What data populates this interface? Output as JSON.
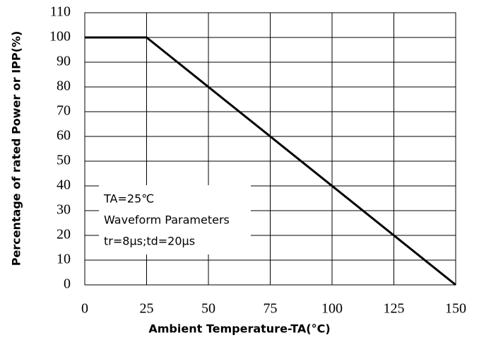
{
  "chart_data": {
    "type": "line",
    "x": [
      0,
      25,
      150
    ],
    "values": [
      100,
      100,
      0
    ],
    "color": "#000000",
    "xlim": [
      0,
      150
    ],
    "xticks": [
      0,
      25,
      50,
      75,
      100,
      125,
      150
    ],
    "ylim": [
      0,
      110
    ],
    "yticks": [
      0,
      10,
      20,
      30,
      40,
      50,
      60,
      70,
      80,
      90,
      100,
      110
    ],
    "grid": true,
    "xlabel": "Ambient Temperature-TA(°C)",
    "ylabel": "Percentage of rated Power or IPP(%)",
    "annotations": [
      "TA=25℃",
      "Waveform Parameters",
      "tr=8μs;td=20μs"
    ]
  }
}
